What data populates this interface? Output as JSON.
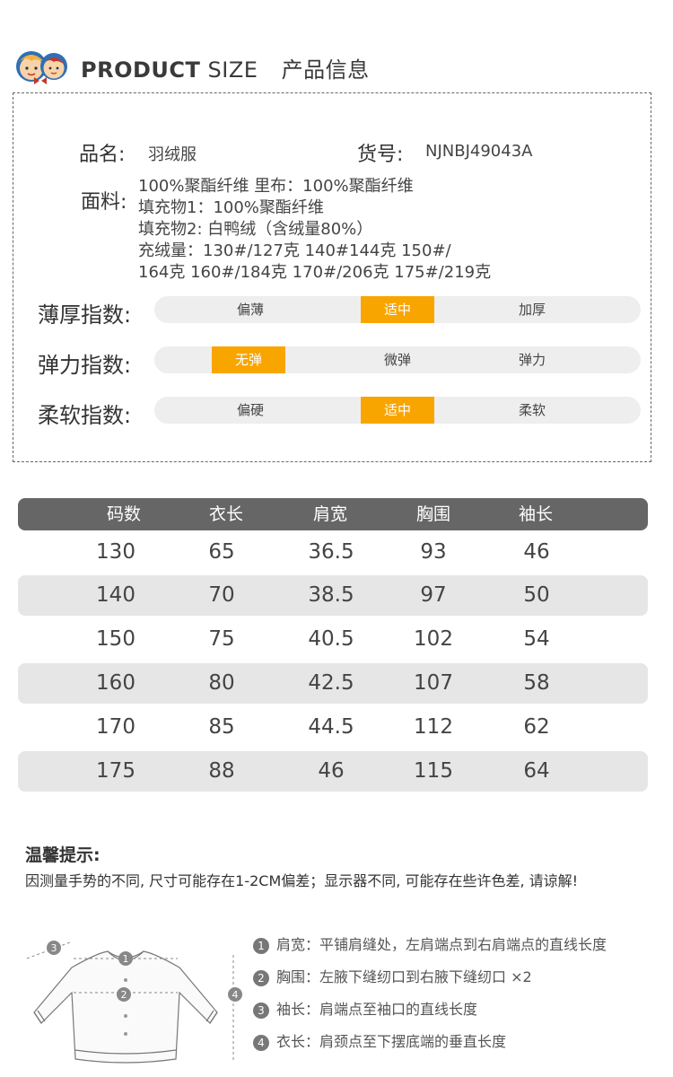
{
  "header": {
    "title_bold": "PRODUCT",
    "title_light": "SIZE",
    "title_cn": "产品信息"
  },
  "info": {
    "name_label": "品名:",
    "name_value": "羽绒服",
    "sku_label": "货号:",
    "sku_value": "NJNBJ49043A",
    "fabric_label": "面料:",
    "fabric_lines": [
      "100%聚酯纤维 里布：100%聚酯纤维",
      "填充物1：100%聚酯纤维",
      "填充物2: 白鸭绒（含绒量80%）",
      "充绒量：130#/127克 140#144克 150#/",
      "164克 160#/184克 170#/206克 175#/219克"
    ]
  },
  "scales": [
    {
      "label": "薄厚指数:",
      "options": [
        "偏薄",
        "适中",
        "加厚"
      ],
      "selected": 1
    },
    {
      "label": "弹力指数:",
      "options": [
        "无弹",
        "微弹",
        "弹力"
      ],
      "selected": 0
    },
    {
      "label": "柔软指数:",
      "options": [
        "偏硬",
        "适中",
        "柔软"
      ],
      "selected": 1
    }
  ],
  "size_table": {
    "headers": [
      "码数",
      "衣长",
      "肩宽",
      "胸围",
      "袖长"
    ],
    "rows": [
      [
        "130",
        "65",
        "36.5",
        "93",
        "46"
      ],
      [
        "140",
        "70",
        "38.5",
        "97",
        "50"
      ],
      [
        "150",
        "75",
        "40.5",
        "102",
        "54"
      ],
      [
        "160",
        "80",
        "42.5",
        "107",
        "58"
      ],
      [
        "170",
        "85",
        "44.5",
        "112",
        "62"
      ],
      [
        "175",
        "88",
        "46",
        "115",
        "64"
      ]
    ]
  },
  "tips": {
    "title": "温馨提示:",
    "text": "因测量手势的不同, 尺寸可能存在1-2CM偏差；显示器不同, 可能存在些许色差, 请谅解!"
  },
  "measurements": [
    {
      "num": "1",
      "text": "肩宽：平铺肩缝处，左肩端点到右肩端点的直线长度"
    },
    {
      "num": "2",
      "text": "胸围：左腋下缝纫口到右腋下缝纫口 ×2"
    },
    {
      "num": "3",
      "text": "袖长：肩端点至袖口的直线长度"
    },
    {
      "num": "4",
      "text": "衣长：肩颈点至下摆底端的垂直长度"
    }
  ],
  "colors": {
    "accent": "#f9a500",
    "table_header": "#666666",
    "row_shade": "#e6e6e6",
    "bar_bg": "#eeeeee"
  }
}
